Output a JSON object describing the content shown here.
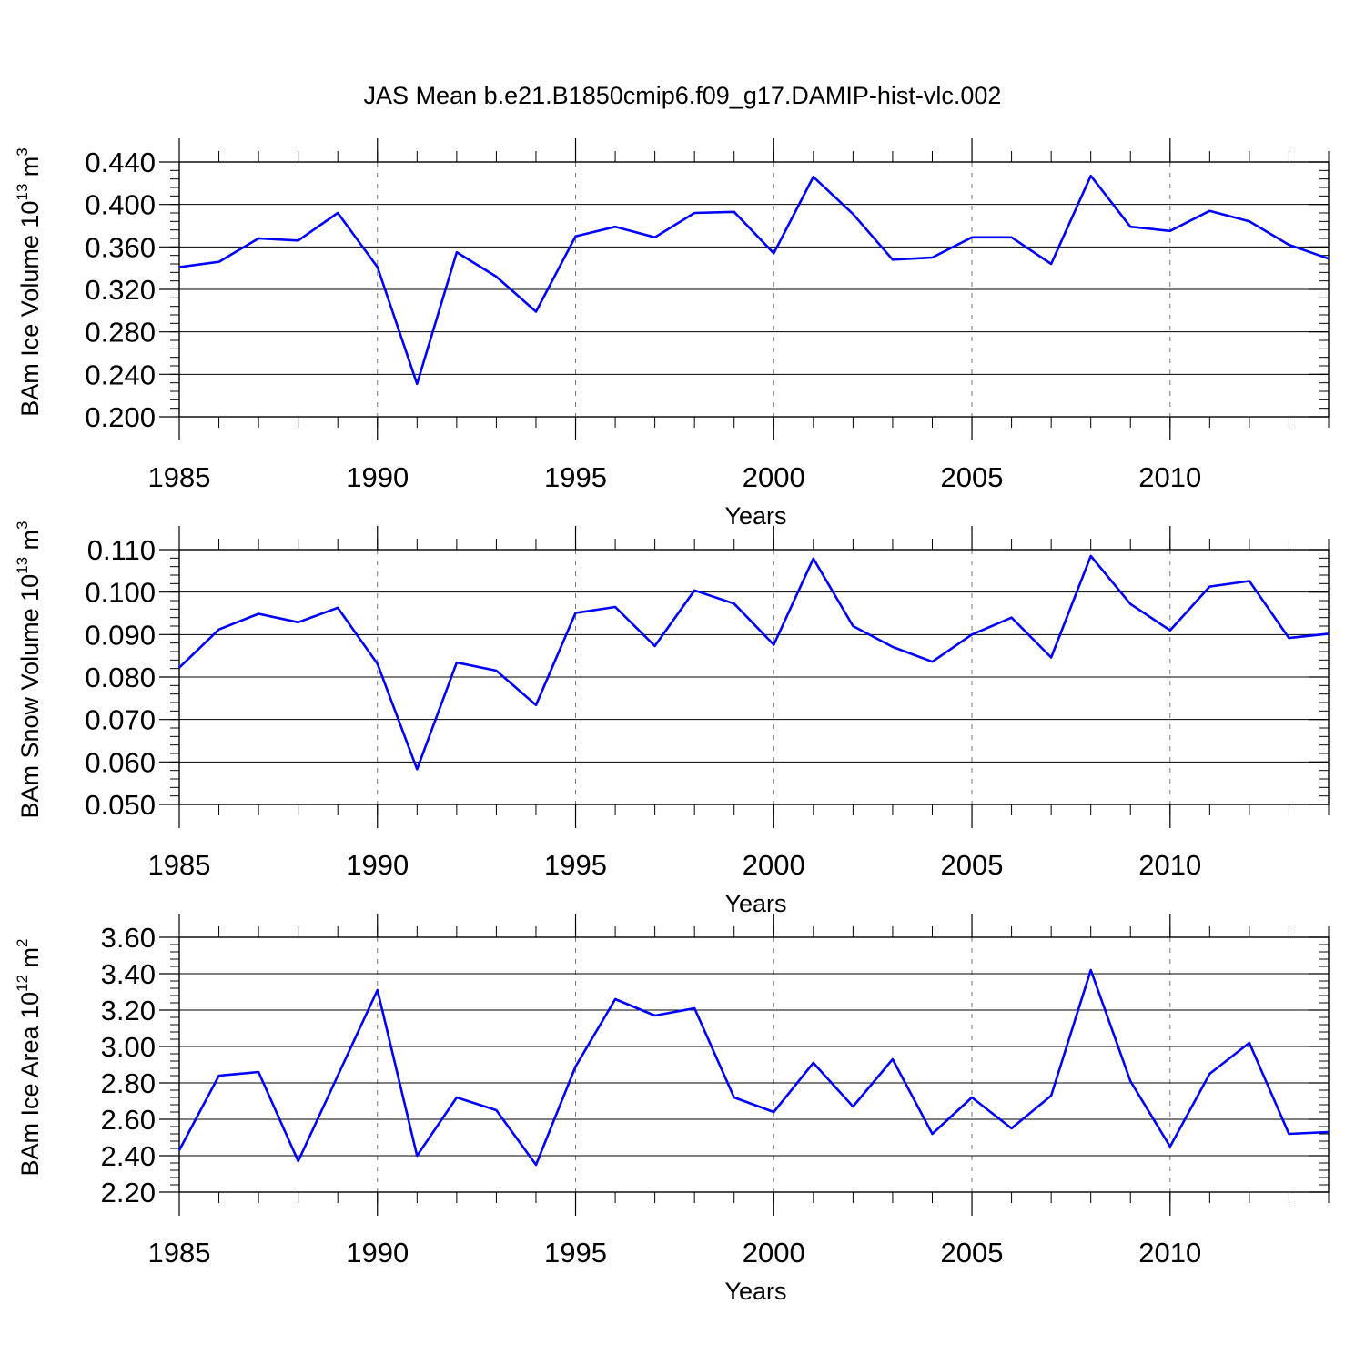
{
  "title": "JAS Mean b.e21.B1850cmip6.f09_g17.DAMIP-hist-vlc.002",
  "colors": {
    "line": "#0000ff",
    "axis": "#000000",
    "grid": "#777777"
  },
  "chart_data": [
    {
      "type": "line",
      "ylabel": {
        "text": "BAm Ice Volume 10",
        "exp": "13",
        "unit": " m",
        "unit_exp": "3"
      },
      "xlabel": "Years",
      "xlim": [
        1985,
        2014
      ],
      "ylim": [
        0.2,
        0.44
      ],
      "y_ticks": [
        0.2,
        0.24,
        0.28,
        0.32,
        0.36,
        0.4,
        0.44
      ],
      "y_tick_labels": [
        "0.200",
        "0.240",
        "0.280",
        "0.320",
        "0.360",
        "0.400",
        "0.440"
      ],
      "y_minor_step": 0.008,
      "x_ticks": [
        1985,
        1990,
        1995,
        2000,
        2005,
        2010
      ],
      "x_tick_labels": [
        "1985",
        "1990",
        "1995",
        "2000",
        "2005",
        "2010"
      ],
      "x_grid": [
        1990,
        1995,
        2000,
        2005,
        2010
      ],
      "series": [
        {
          "name": "BAm Ice Volume",
          "x": [
            1985,
            1986,
            1987,
            1988,
            1989,
            1990,
            1991,
            1992,
            1993,
            1994,
            1995,
            1996,
            1997,
            1998,
            1999,
            2000,
            2001,
            2002,
            2003,
            2004,
            2005,
            2006,
            2007,
            2008,
            2009,
            2010,
            2011,
            2012,
            2013,
            2014
          ],
          "values": [
            0.341,
            0.346,
            0.368,
            0.366,
            0.392,
            0.341,
            0.231,
            0.355,
            0.332,
            0.299,
            0.37,
            0.379,
            0.369,
            0.392,
            0.393,
            0.354,
            0.426,
            0.391,
            0.348,
            0.35,
            0.369,
            0.369,
            0.344,
            0.427,
            0.379,
            0.375,
            0.394,
            0.384,
            0.362,
            0.349
          ]
        }
      ]
    },
    {
      "type": "line",
      "ylabel": {
        "text": "BAm Snow Volume 10",
        "exp": "13",
        "unit": " m",
        "unit_exp": "3"
      },
      "xlabel": "Years",
      "xlim": [
        1985,
        2014
      ],
      "ylim": [
        0.05,
        0.11
      ],
      "y_ticks": [
        0.05,
        0.06,
        0.07,
        0.08,
        0.09,
        0.1,
        0.11
      ],
      "y_tick_labels": [
        "0.050",
        "0.060",
        "0.070",
        "0.080",
        "0.090",
        "0.100",
        "0.110"
      ],
      "y_minor_step": 0.002,
      "x_ticks": [
        1985,
        1990,
        1995,
        2000,
        2005,
        2010
      ],
      "x_tick_labels": [
        "1985",
        "1990",
        "1995",
        "2000",
        "2005",
        "2010"
      ],
      "x_grid": [
        1990,
        1995,
        2000,
        2005,
        2010
      ],
      "series": [
        {
          "name": "BAm Snow Volume",
          "x": [
            1985,
            1986,
            1987,
            1988,
            1989,
            1990,
            1991,
            1992,
            1993,
            1994,
            1995,
            1996,
            1997,
            1998,
            1999,
            2000,
            2001,
            2002,
            2003,
            2004,
            2005,
            2006,
            2007,
            2008,
            2009,
            2010,
            2011,
            2012,
            2013,
            2014
          ],
          "values": [
            0.0822,
            0.0912,
            0.0949,
            0.0929,
            0.0963,
            0.0831,
            0.0583,
            0.0834,
            0.0815,
            0.0734,
            0.0951,
            0.0965,
            0.0873,
            0.1004,
            0.0973,
            0.0876,
            0.1079,
            0.092,
            0.0871,
            0.0836,
            0.09,
            0.094,
            0.0846,
            0.1085,
            0.0972,
            0.091,
            0.1013,
            0.1026,
            0.0892,
            0.0902
          ]
        }
      ]
    },
    {
      "type": "line",
      "ylabel": {
        "text": "BAm Ice Area 10",
        "exp": "12",
        "unit": " m",
        "unit_exp": "2"
      },
      "xlabel": "Years",
      "xlim": [
        1985,
        2014
      ],
      "ylim": [
        2.2,
        3.6
      ],
      "y_ticks": [
        2.2,
        2.4,
        2.6,
        2.8,
        3.0,
        3.2,
        3.4,
        3.6
      ],
      "y_tick_labels": [
        "2.20",
        "2.40",
        "2.60",
        "2.80",
        "3.00",
        "3.20",
        "3.40",
        "3.60"
      ],
      "y_minor_step": 0.04,
      "x_ticks": [
        1985,
        1990,
        1995,
        2000,
        2005,
        2010
      ],
      "x_tick_labels": [
        "1985",
        "1990",
        "1995",
        "2000",
        "2005",
        "2010"
      ],
      "x_grid": [
        1990,
        1995,
        2000,
        2005,
        2010
      ],
      "series": [
        {
          "name": "BAm Ice Area",
          "x": [
            1985,
            1986,
            1987,
            1988,
            1989,
            1990,
            1991,
            1992,
            1993,
            1994,
            1995,
            1996,
            1997,
            1998,
            1999,
            2000,
            2001,
            2002,
            2003,
            2004,
            2005,
            2006,
            2007,
            2008,
            2009,
            2010,
            2011,
            2012,
            2013,
            2014
          ],
          "values": [
            2.43,
            2.84,
            2.86,
            2.37,
            2.84,
            3.31,
            2.4,
            2.72,
            2.65,
            2.35,
            2.89,
            3.26,
            3.17,
            3.21,
            2.72,
            2.64,
            2.91,
            2.67,
            2.93,
            2.52,
            2.72,
            2.55,
            2.73,
            3.42,
            2.81,
            2.45,
            2.85,
            3.02,
            2.52,
            2.53
          ]
        }
      ]
    }
  ]
}
